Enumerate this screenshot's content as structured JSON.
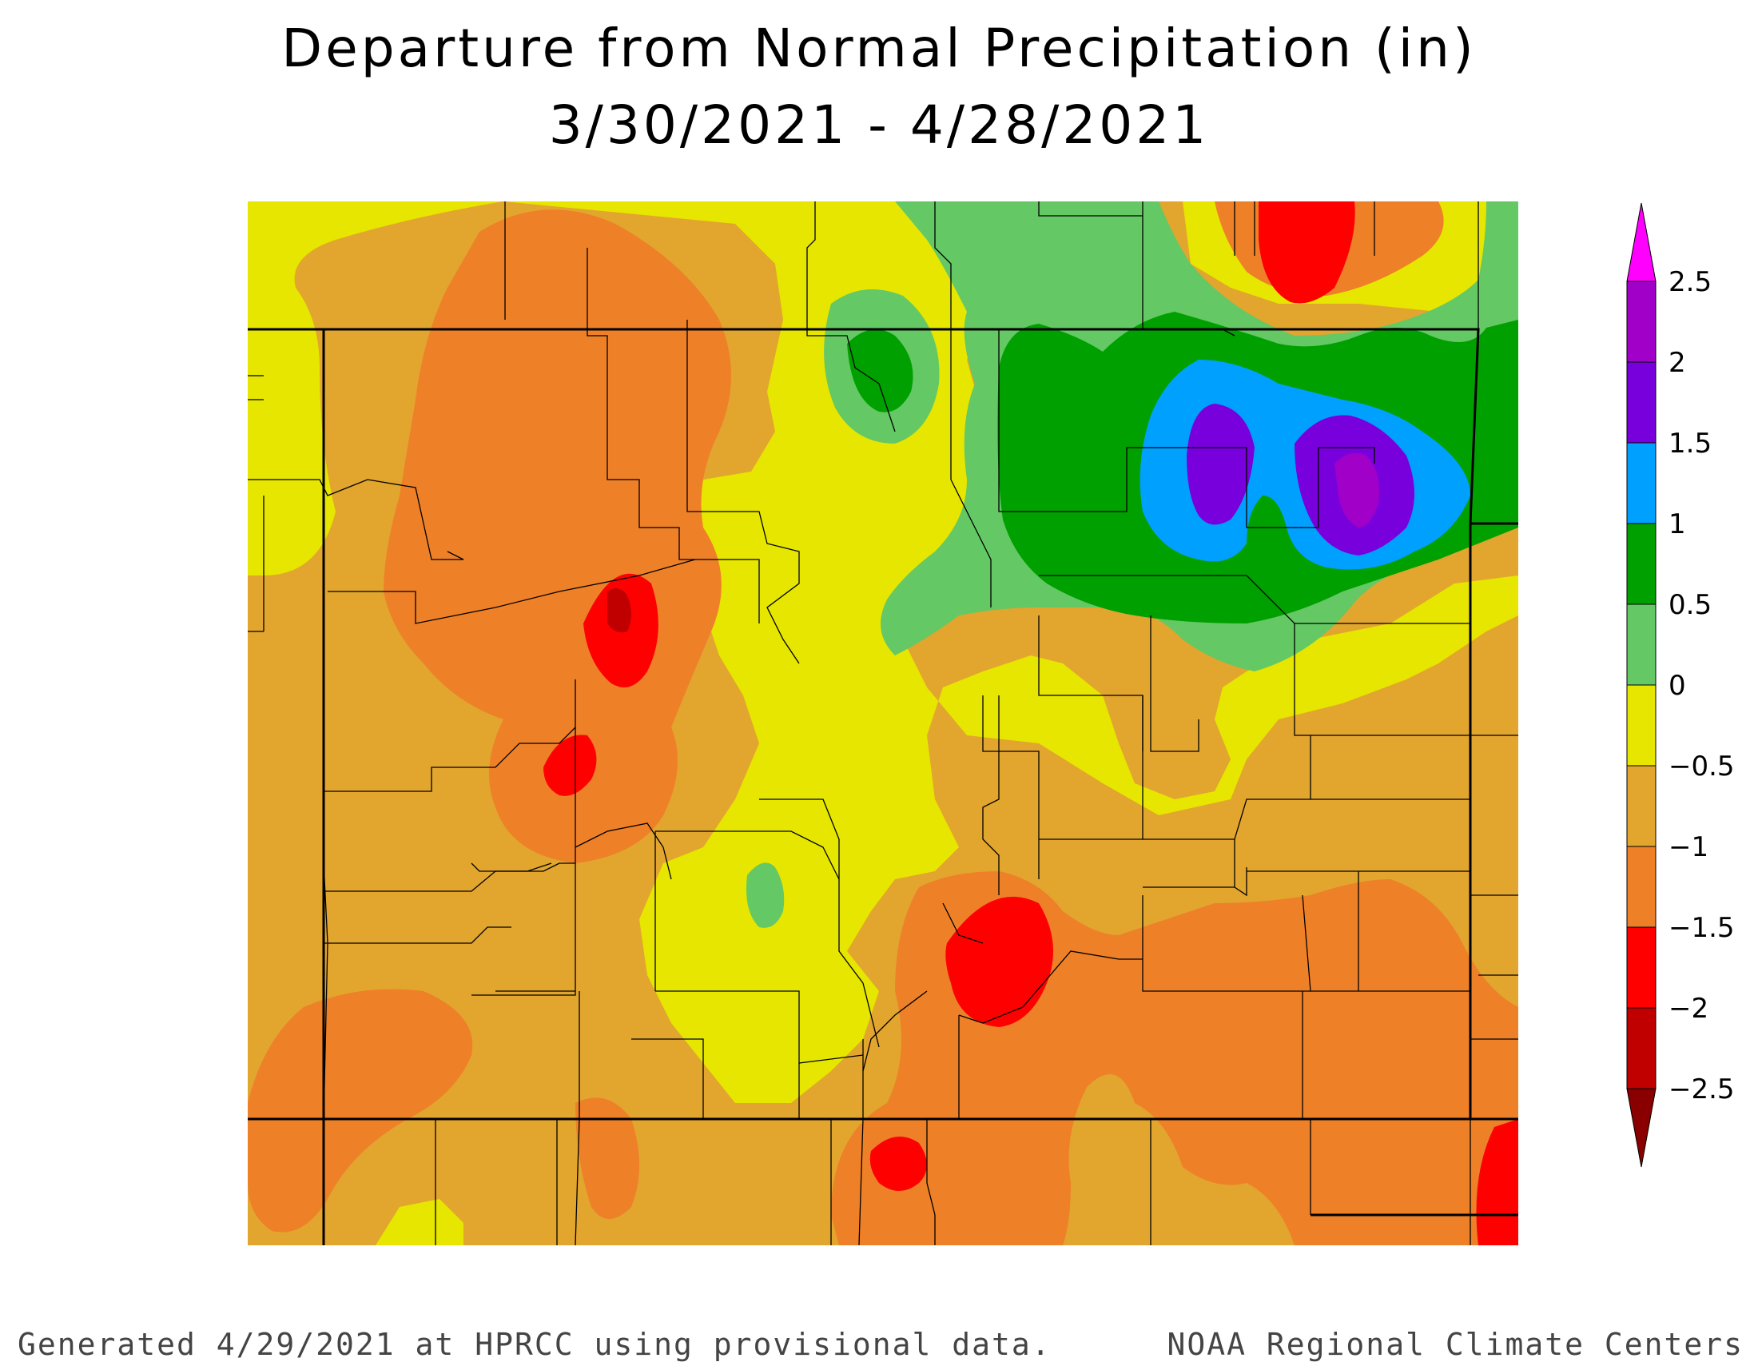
{
  "title": "Departure from Normal Precipitation (in)",
  "subtitle": "3/30/2021 - 4/28/2021",
  "legend": {
    "labels": [
      "2.5",
      "2",
      "1.5",
      "1",
      "0.5",
      "0",
      "−0.5",
      "−1",
      "−1.5",
      "−2",
      "−2.5"
    ],
    "colors": [
      "#ff00ff",
      "#a000c8",
      "#7800dc",
      "#00a0ff",
      "#00a000",
      "#64c864",
      "#e6e600",
      "#e2a52e",
      "#ee8028",
      "#ff0000",
      "#c00000",
      "#8a0000"
    ]
  },
  "footer": {
    "left": "Generated 4/29/2021 at HPRCC using provisional data.",
    "right": "NOAA Regional Climate Centers"
  }
}
